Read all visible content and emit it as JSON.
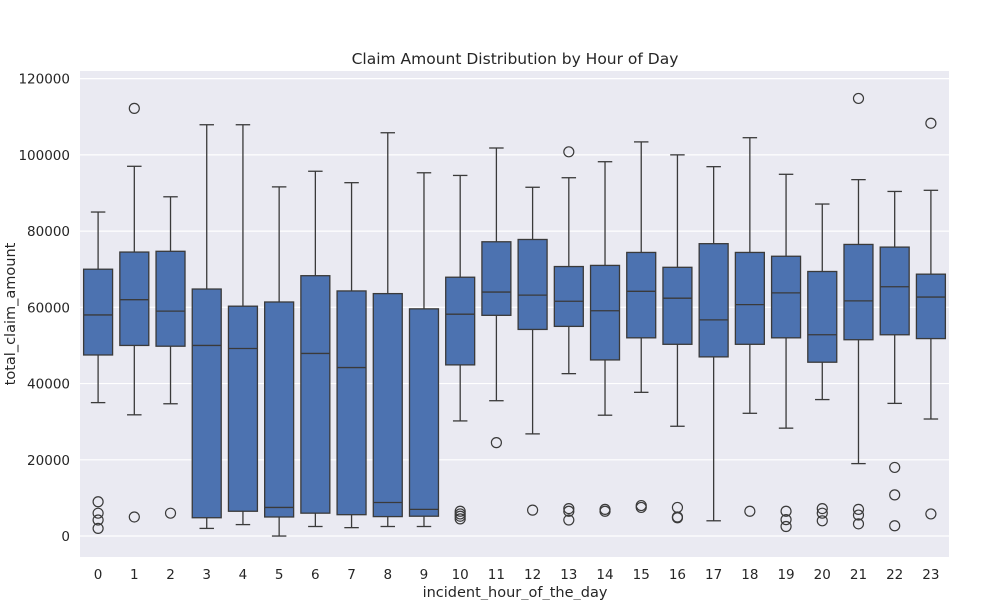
{
  "chart_data": {
    "type": "box",
    "title": "Claim Amount Distribution by Hour of Day",
    "xlabel": "incident_hour_of_the_day",
    "ylabel": "total_claim_amount",
    "ylim": [
      -5500,
      122000
    ],
    "yticks": [
      0,
      20000,
      40000,
      60000,
      80000,
      100000,
      120000
    ],
    "grid": true,
    "box_color": "#4c72b0",
    "categories": [
      "0",
      "1",
      "2",
      "3",
      "4",
      "5",
      "6",
      "7",
      "8",
      "9",
      "10",
      "11",
      "12",
      "13",
      "14",
      "15",
      "16",
      "17",
      "18",
      "19",
      "20",
      "21",
      "22",
      "23"
    ],
    "boxes": [
      {
        "whislo": 35000,
        "q1": 47500,
        "med": 58000,
        "q3": 70000,
        "whishi": 85000,
        "fliers": [
          9000,
          6000,
          4200,
          2000
        ]
      },
      {
        "whislo": 31800,
        "q1": 50000,
        "med": 62000,
        "q3": 74500,
        "whishi": 97000,
        "fliers": [
          112200,
          5000
        ]
      },
      {
        "whislo": 34700,
        "q1": 49800,
        "med": 59000,
        "q3": 74700,
        "whishi": 89000,
        "fliers": [
          6000
        ]
      },
      {
        "whislo": 2000,
        "q1": 4800,
        "med": 50000,
        "q3": 64800,
        "whishi": 107900,
        "fliers": []
      },
      {
        "whislo": 3000,
        "q1": 6500,
        "med": 49200,
        "q3": 60300,
        "whishi": 107900,
        "fliers": []
      },
      {
        "whislo": 0,
        "q1": 5000,
        "med": 7500,
        "q3": 61400,
        "whishi": 91600,
        "fliers": []
      },
      {
        "whislo": 2500,
        "q1": 6000,
        "med": 47900,
        "q3": 68300,
        "whishi": 95700,
        "fliers": []
      },
      {
        "whislo": 2200,
        "q1": 5600,
        "med": 44200,
        "q3": 64300,
        "whishi": 92700,
        "fliers": []
      },
      {
        "whislo": 2500,
        "q1": 5100,
        "med": 8800,
        "q3": 63600,
        "whishi": 105800,
        "fliers": []
      },
      {
        "whislo": 2500,
        "q1": 5200,
        "med": 7000,
        "q3": 59600,
        "whishi": 95300,
        "fliers": []
      },
      {
        "whislo": 30200,
        "q1": 44900,
        "med": 58200,
        "q3": 67900,
        "whishi": 94600,
        "fliers": [
          6500,
          5800,
          5200,
          4500
        ]
      },
      {
        "whislo": 35500,
        "q1": 57900,
        "med": 64000,
        "q3": 77200,
        "whishi": 101800,
        "fliers": [
          24500
        ]
      },
      {
        "whislo": 26800,
        "q1": 54200,
        "med": 63200,
        "q3": 77800,
        "whishi": 91500,
        "fliers": [
          6800
        ]
      },
      {
        "whislo": 42600,
        "q1": 55000,
        "med": 61600,
        "q3": 70700,
        "whishi": 94000,
        "fliers": [
          100800,
          7200,
          6500,
          4200
        ]
      },
      {
        "whislo": 31700,
        "q1": 46200,
        "med": 59100,
        "q3": 71000,
        "whishi": 98200,
        "fliers": [
          7000,
          6500
        ]
      },
      {
        "whislo": 37700,
        "q1": 52000,
        "med": 64200,
        "q3": 74400,
        "whishi": 103400,
        "fliers": [
          8000,
          7500
        ]
      },
      {
        "whislo": 28800,
        "q1": 50300,
        "med": 62400,
        "q3": 70500,
        "whishi": 100000,
        "fliers": [
          7500,
          5000,
          4800
        ]
      },
      {
        "whislo": 4000,
        "q1": 47000,
        "med": 56700,
        "q3": 76700,
        "whishi": 96900,
        "fliers": []
      },
      {
        "whislo": 32200,
        "q1": 50300,
        "med": 60700,
        "q3": 74400,
        "whishi": 104500,
        "fliers": [
          6500
        ]
      },
      {
        "whislo": 28300,
        "q1": 52000,
        "med": 63800,
        "q3": 73400,
        "whishi": 94900,
        "fliers": [
          6500,
          4300,
          2500
        ]
      },
      {
        "whislo": 35800,
        "q1": 45600,
        "med": 52800,
        "q3": 69400,
        "whishi": 87100,
        "fliers": [
          7200,
          6000,
          4000
        ]
      },
      {
        "whislo": 19000,
        "q1": 51500,
        "med": 61700,
        "q3": 76500,
        "whishi": 93500,
        "fliers": [
          114800,
          7000,
          5500,
          3200
        ]
      },
      {
        "whislo": 34800,
        "q1": 52800,
        "med": 65400,
        "q3": 75800,
        "whishi": 90400,
        "fliers": [
          18000,
          10800,
          2700
        ]
      },
      {
        "whislo": 30700,
        "q1": 51800,
        "med": 62700,
        "q3": 68700,
        "whishi": 90700,
        "fliers": [
          108300,
          5800
        ]
      }
    ]
  }
}
